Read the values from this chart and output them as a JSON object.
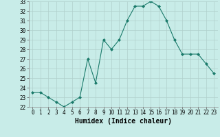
{
  "xlabel": "Humidex (Indice chaleur)",
  "x": [
    0,
    1,
    2,
    3,
    4,
    5,
    6,
    7,
    8,
    9,
    10,
    11,
    12,
    13,
    14,
    15,
    16,
    17,
    18,
    19,
    20,
    21,
    22,
    23
  ],
  "y": [
    23.5,
    23.5,
    23.0,
    22.5,
    22.0,
    22.5,
    23.0,
    27.0,
    24.5,
    29.0,
    28.0,
    29.0,
    31.0,
    32.5,
    32.5,
    33.0,
    32.5,
    31.0,
    29.0,
    27.5,
    27.5,
    27.5,
    26.5,
    25.5
  ],
  "line_color": "#1a7a6a",
  "marker": "D",
  "marker_size": 2,
  "bg_color": "#c8ece8",
  "grid_color": "#b0d0cc",
  "ylim": [
    22,
    33
  ],
  "yticks": [
    22,
    23,
    24,
    25,
    26,
    27,
    28,
    29,
    30,
    31,
    32,
    33
  ],
  "xticks": [
    0,
    1,
    2,
    3,
    4,
    5,
    6,
    7,
    8,
    9,
    10,
    11,
    12,
    13,
    14,
    15,
    16,
    17,
    18,
    19,
    20,
    21,
    22,
    23
  ],
  "tick_fontsize": 5.5,
  "xlabel_fontsize": 7,
  "linewidth": 0.8
}
